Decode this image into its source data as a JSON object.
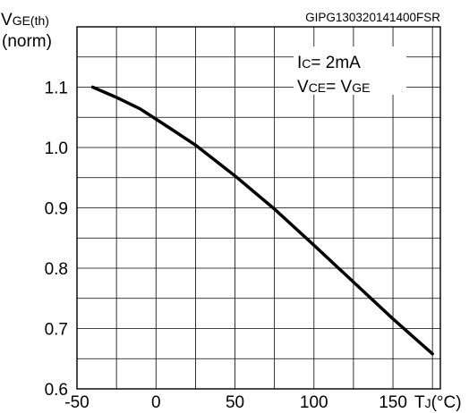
{
  "chart_data": {
    "type": "line",
    "figure_id": "GIPG130320141400FSR",
    "ylabel": {
      "main": "V",
      "sub": "GE(th)",
      "unit": "(norm)"
    },
    "xlabel": {
      "main": "T",
      "sub": "J",
      "unit": "(°C)"
    },
    "xlim": [
      -50,
      180
    ],
    "ylim": [
      0.6,
      1.2
    ],
    "x_ticks": [
      -50,
      0,
      50,
      100,
      150
    ],
    "x_tick_labels": [
      "-50",
      "0",
      "50",
      "100",
      "150"
    ],
    "y_ticks": [
      0.6,
      0.7,
      0.8,
      0.9,
      1.0,
      1.1
    ],
    "y_tick_labels": [
      "0.6",
      "0.7",
      "0.8",
      "0.9",
      "1.0",
      "1.1"
    ],
    "x_minor_step": 25,
    "y_minor_step": 0.05,
    "grid": true,
    "annotations": [
      {
        "main": "I",
        "sub": "C",
        "rest": "= 2mA"
      },
      {
        "main": "V",
        "sub": "CE",
        "rest": "= V",
        "sub2": "GE"
      }
    ],
    "series": [
      {
        "x": [
          -40,
          -25,
          -10,
          0,
          10,
          25,
          50,
          75,
          100,
          125,
          150,
          175
        ],
        "y": [
          1.1,
          1.083,
          1.064,
          1.047,
          1.03,
          1.004,
          0.953,
          0.898,
          0.838,
          0.777,
          0.716,
          0.658
        ]
      }
    ]
  }
}
